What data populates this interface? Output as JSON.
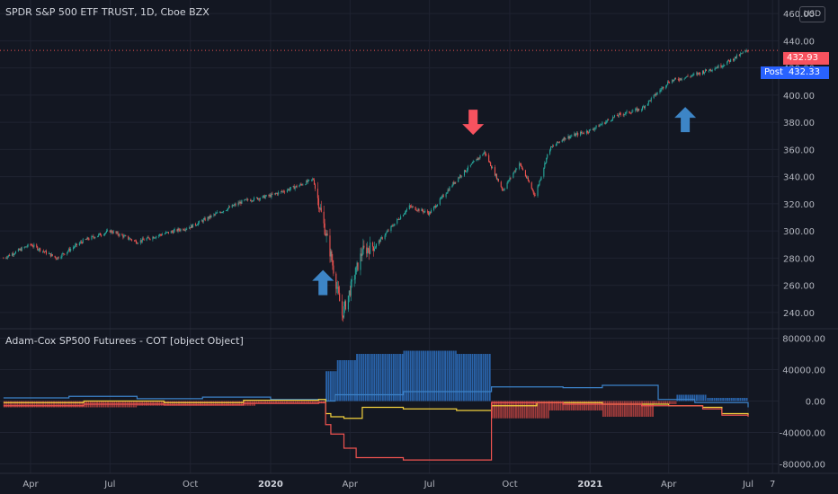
{
  "header": {
    "symbol_title": "SPDR S&P 500 ETF TRUST, 1D, Cboe BZX",
    "currency": "USD"
  },
  "price_tags": {
    "last": "432.93",
    "post_label": "Post",
    "post_value": "432.33"
  },
  "indicator": {
    "title": "Adam-Cox SP500 Futurees - COT [object Object]"
  },
  "colors": {
    "background": "#131722",
    "grid": "#1f2331",
    "axis_text": "#b2b5be",
    "candle_up": "#26a69a",
    "candle_down": "#ef5350",
    "arrow_up": "#3d85c6",
    "arrow_down": "#f7525f",
    "bar_positive": "#2962a8",
    "bar_negative": "#9e3b3b",
    "line_blue": "#3c82c8",
    "line_yellow": "#f3d13d",
    "line_red": "#ef5350",
    "line_orange": "#ff9800"
  },
  "chart_data": [
    {
      "type": "candlestick",
      "title": "SPDR S&P 500 ETF TRUST, 1D, Cboe BZX",
      "x_ticks": [
        "Apr",
        "Jul",
        "Oct",
        "2020",
        "Apr",
        "Jul",
        "Oct",
        "2021",
        "Apr",
        "Jul",
        "7"
      ],
      "y_ticks": [
        240,
        260,
        280,
        300,
        320,
        340,
        360,
        380,
        400,
        420,
        440,
        460
      ],
      "y_tick_labels": [
        "240.00",
        "260.00",
        "280.00",
        "300.00",
        "320.00",
        "340.00",
        "360.00",
        "380.00",
        "400.00",
        "420.00",
        "440.00",
        "460.00"
      ],
      "ylim": [
        228,
        470
      ],
      "last_price": 432.93,
      "post_price": 432.33,
      "x_dates": [
        "2019-03-01",
        "2019-04-01",
        "2019-05-01",
        "2019-06-01",
        "2019-07-01",
        "2019-08-01",
        "2019-09-01",
        "2019-10-01",
        "2019-11-01",
        "2019-12-01",
        "2020-01-01",
        "2020-02-01",
        "2020-02-19",
        "2020-03-10",
        "2020-03-23",
        "2020-04-15",
        "2020-05-01",
        "2020-06-08",
        "2020-07-01",
        "2020-08-01",
        "2020-09-02",
        "2020-09-23",
        "2020-10-12",
        "2020-10-30",
        "2020-11-15",
        "2020-12-01",
        "2021-01-01",
        "2021-02-01",
        "2021-03-01",
        "2021-04-01",
        "2021-05-01",
        "2021-06-01",
        "2021-07-01"
      ],
      "close": [
        280,
        290,
        280,
        293,
        300,
        292,
        298,
        303,
        313,
        322,
        326,
        333,
        338,
        282,
        238,
        285,
        290,
        318,
        313,
        338,
        358,
        330,
        350,
        326,
        360,
        368,
        374,
        385,
        390,
        410,
        415,
        422,
        433
      ],
      "arrows": [
        {
          "date": "2020-03-01",
          "direction": "up",
          "price": 262
        },
        {
          "date": "2020-08-20",
          "direction": "down",
          "price": 380
        },
        {
          "date": "2021-04-20",
          "direction": "up",
          "price": 382
        }
      ]
    },
    {
      "type": "bar",
      "title": "Adam-Cox SP500 Futurees - COT [object Object]",
      "y_ticks": [
        -80000,
        -40000,
        0,
        40000,
        80000
      ],
      "y_tick_labels": [
        "-80000.00",
        "-40000.00",
        "0.00",
        "40000.00",
        "80000.00"
      ],
      "ylim": [
        -92000,
        92000
      ],
      "bars": [
        {
          "start": "2019-03-01",
          "end": "2019-08-01",
          "value": -8000
        },
        {
          "start": "2019-08-01",
          "end": "2019-12-15",
          "value": -6000
        },
        {
          "start": "2019-12-15",
          "end": "2020-03-04",
          "value": -3000
        },
        {
          "start": "2020-03-04",
          "end": "2020-03-17",
          "value": 38000
        },
        {
          "start": "2020-03-17",
          "end": "2020-04-08",
          "value": 52000
        },
        {
          "start": "2020-04-08",
          "end": "2020-06-01",
          "value": 60000
        },
        {
          "start": "2020-06-01",
          "end": "2020-08-01",
          "value": 64000
        },
        {
          "start": "2020-08-01",
          "end": "2020-09-10",
          "value": 60000
        },
        {
          "start": "2020-09-10",
          "end": "2020-11-15",
          "value": -22000
        },
        {
          "start": "2020-11-15",
          "end": "2021-01-15",
          "value": -12000
        },
        {
          "start": "2021-01-15",
          "end": "2021-03-15",
          "value": -20000
        },
        {
          "start": "2021-03-15",
          "end": "2021-04-10",
          "value": -4000
        },
        {
          "start": "2021-04-10",
          "end": "2021-05-15",
          "value": 8000
        },
        {
          "start": "2021-05-15",
          "end": "2021-07-01",
          "value": 4000
        }
      ],
      "series": [
        {
          "color_key": "line_blue",
          "dates": [
            "2019-03-01",
            "2019-05-15",
            "2019-08-01",
            "2019-10-15",
            "2020-01-01",
            "2020-03-04",
            "2020-03-15",
            "2020-06-01",
            "2020-09-10",
            "2020-09-10",
            "2020-12-01",
            "2021-01-15",
            "2021-03-10",
            "2021-03-20",
            "2021-05-01",
            "2021-07-01"
          ],
          "values": [
            4000,
            6000,
            3000,
            5000,
            2000,
            0,
            8000,
            12000,
            16000,
            18000,
            17000,
            20000,
            20000,
            2000,
            -2000,
            -8000
          ]
        },
        {
          "color_key": "line_yellow",
          "dates": [
            "2019-03-01",
            "2019-06-01",
            "2019-09-01",
            "2019-12-01",
            "2020-02-25",
            "2020-03-04",
            "2020-03-10",
            "2020-03-25",
            "2020-04-15",
            "2020-06-01",
            "2020-08-01",
            "2020-09-10",
            "2020-11-01",
            "2021-01-15",
            "2021-04-01",
            "2021-05-10",
            "2021-06-01",
            "2021-07-01"
          ],
          "values": [
            -2000,
            0,
            -2000,
            1000,
            2000,
            -16000,
            -20000,
            -22000,
            -8000,
            -10000,
            -12000,
            -6000,
            -2000,
            -4000,
            -6000,
            -8000,
            -16000,
            -18000
          ]
        },
        {
          "color_key": "line_red",
          "dates": [
            "2019-03-01",
            "2019-06-01",
            "2019-09-01",
            "2019-12-01",
            "2020-02-25",
            "2020-03-04",
            "2020-03-10",
            "2020-03-25",
            "2020-04-08",
            "2020-06-01",
            "2020-09-10",
            "2020-09-10",
            "2020-12-01",
            "2021-03-01",
            "2021-05-10",
            "2021-06-01",
            "2021-07-01"
          ],
          "values": [
            -6000,
            -4000,
            -5000,
            -3000,
            -2000,
            -30000,
            -42000,
            -60000,
            -72000,
            -75000,
            -75000,
            -2000,
            -4000,
            -6000,
            -10000,
            -18000,
            -20000
          ]
        }
      ]
    }
  ]
}
